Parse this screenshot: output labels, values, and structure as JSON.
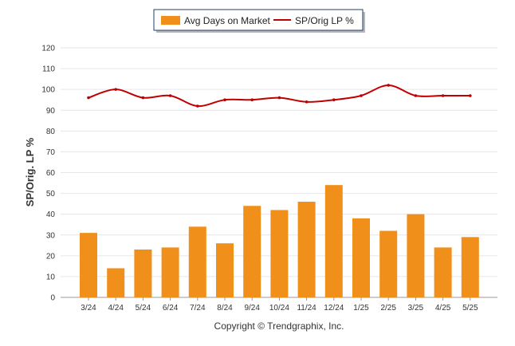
{
  "colors": {
    "bar": "#F0901A",
    "line": "#C00000",
    "grid": "#E6E6E6",
    "axis": "#9A9A9A",
    "legend_border": "#1F3F6B"
  },
  "copyright": "Copyright © Trendgraphix, Inc.",
  "chart_data": {
    "type": "bar",
    "title": "",
    "xlabel": "",
    "ylabel": "SP/Orig. LP %",
    "ylim": [
      0,
      120
    ],
    "yticks": [
      0,
      10,
      20,
      30,
      40,
      50,
      60,
      70,
      80,
      90,
      100,
      110,
      120
    ],
    "grid": true,
    "legend_position": "top-center",
    "categories": [
      "3/24",
      "4/24",
      "5/24",
      "6/24",
      "7/24",
      "8/24",
      "9/24",
      "10/24",
      "11/24",
      "12/24",
      "1/25",
      "2/25",
      "3/25",
      "4/25",
      "5/25"
    ],
    "series": [
      {
        "name": "Avg Days on Market",
        "type": "bar",
        "values": [
          31,
          14,
          23,
          24,
          34,
          26,
          44,
          42,
          46,
          54,
          38,
          32,
          40,
          24,
          29
        ]
      },
      {
        "name": "SP/Orig LP %",
        "type": "line",
        "values": [
          96,
          100,
          96,
          97,
          92,
          95,
          95,
          96,
          94,
          95,
          97,
          102,
          97,
          97,
          97
        ]
      }
    ]
  }
}
